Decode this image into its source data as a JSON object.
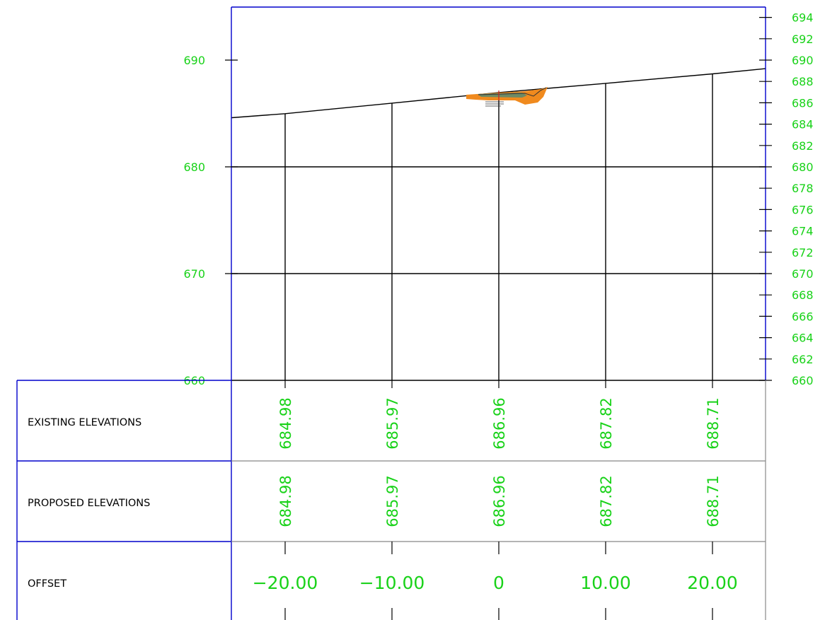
{
  "section": {
    "left_axis_labels": [
      "690",
      "680",
      "670",
      "660"
    ],
    "right_axis_labels": [
      "694",
      "692",
      "690",
      "688",
      "686",
      "684",
      "682",
      "680",
      "678",
      "676",
      "674",
      "672",
      "670",
      "668",
      "666",
      "664",
      "662",
      "660"
    ],
    "ground_line": {
      "offsets": [
        -25,
        -20,
        -10,
        0,
        10,
        20,
        25
      ],
      "elevations": [
        684.6,
        684.98,
        685.97,
        686.96,
        687.82,
        688.71,
        689.2
      ]
    },
    "colors": {
      "frame": "#0000cc",
      "grid": "#000000",
      "text": "#19d219",
      "table_lines": "#888888",
      "cut_fill": "#f08a1e",
      "pavement": "#6e8a64"
    }
  },
  "table": {
    "row_labels": {
      "existing": "EXISTING ELEVATIONS",
      "proposed": "PROPOSED ELEVATIONS",
      "offset": "OFFSET"
    },
    "existing_elevations": [
      "684.98",
      "685.97",
      "686.96",
      "687.82",
      "688.71"
    ],
    "proposed_elevations": [
      "684.98",
      "685.97",
      "686.96",
      "687.82",
      "688.71"
    ],
    "offsets": [
      "−20.00",
      "−10.00",
      "0",
      "10.00",
      "20.00"
    ]
  }
}
